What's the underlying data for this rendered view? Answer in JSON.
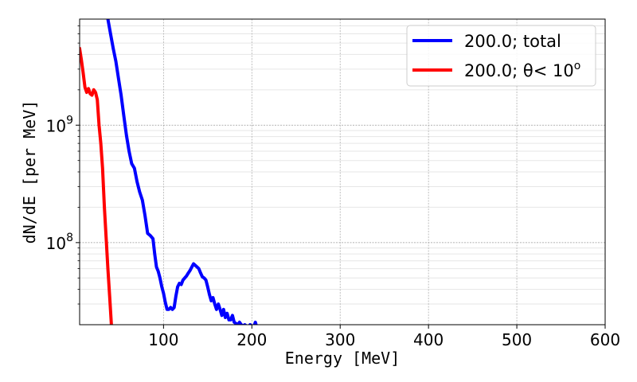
{
  "chart_data": {
    "type": "line",
    "xlabel": "Energy [MeV]",
    "ylabel": "dN/dE [per MeV]",
    "xlim": [
      5,
      600
    ],
    "ylim": [
      20000000,
      8000000000
    ],
    "yscale": "log",
    "grid": true,
    "legend_position": "top-right",
    "x_ticks": [
      {
        "value": 100,
        "label": "100"
      },
      {
        "value": 200,
        "label": "200"
      },
      {
        "value": 300,
        "label": "300"
      },
      {
        "value": 400,
        "label": "400"
      },
      {
        "value": 500,
        "label": "500"
      },
      {
        "value": 600,
        "label": "600"
      }
    ],
    "y_ticks": [
      {
        "value": 100000000,
        "base": "10",
        "exp": "8"
      },
      {
        "value": 1000000000,
        "base": "10",
        "exp": "9"
      }
    ],
    "series": [
      {
        "name": "200.0; total",
        "color": "#0000ff",
        "x": [
          37,
          40,
          43,
          46,
          49,
          52,
          55,
          58,
          61,
          64,
          67,
          70,
          73,
          76,
          79,
          82,
          85,
          88,
          90,
          92,
          94,
          96,
          98,
          100,
          102,
          104,
          106,
          108,
          110,
          112,
          114,
          116,
          118,
          120,
          122,
          124,
          126,
          128,
          130,
          132,
          134,
          136,
          138,
          140,
          142,
          144,
          146,
          148,
          150,
          152,
          154,
          156,
          158,
          160,
          162,
          164,
          166,
          168,
          170,
          172,
          174,
          176,
          178,
          180,
          182,
          184,
          186,
          188,
          190,
          192,
          194,
          196,
          198,
          200,
          202,
          204,
          206,
          208
        ],
        "y": [
          8000000000,
          6000000000,
          4500000000,
          3500000000,
          2500000000,
          1800000000,
          1200000000,
          820000000,
          600000000,
          470000000,
          430000000,
          330000000,
          270000000,
          230000000,
          170000000,
          120000000,
          115000000,
          108000000,
          80000000,
          62000000,
          57000000,
          50000000,
          42000000,
          37000000,
          31000000,
          27000000,
          27000000,
          28000000,
          27000000,
          28000000,
          35000000,
          42000000,
          45000000,
          44000000,
          48000000,
          50000000,
          52000000,
          55000000,
          58000000,
          62000000,
          66000000,
          64000000,
          62000000,
          60000000,
          55000000,
          51000000,
          50000000,
          48000000,
          42000000,
          36000000,
          32000000,
          34000000,
          30000000,
          27000000,
          30000000,
          27000000,
          24000000,
          27000000,
          23000000,
          25000000,
          22000000,
          22000000,
          24000000,
          21000000,
          20500000,
          20000000,
          21000000,
          20000000,
          19500000,
          20000000,
          19500000,
          19000000,
          20000000,
          19500000,
          19000000,
          21000000,
          18500000,
          18000000
        ]
      },
      {
        "name": "200.0; θ< 10",
        "name_superscript": "o",
        "color": "#ff0000",
        "x": [
          5,
          7,
          9,
          11,
          13,
          15,
          17,
          19,
          21,
          23,
          25,
          27,
          29,
          31,
          33,
          35,
          37,
          39,
          41
        ],
        "y": [
          4500000000,
          3600000000,
          2800000000,
          2100000000,
          1900000000,
          2050000000,
          1850000000,
          1800000000,
          2000000000,
          1900000000,
          1650000000,
          1000000000,
          700000000,
          430000000,
          200000000,
          110000000,
          60000000,
          35000000,
          20000000
        ]
      }
    ]
  }
}
